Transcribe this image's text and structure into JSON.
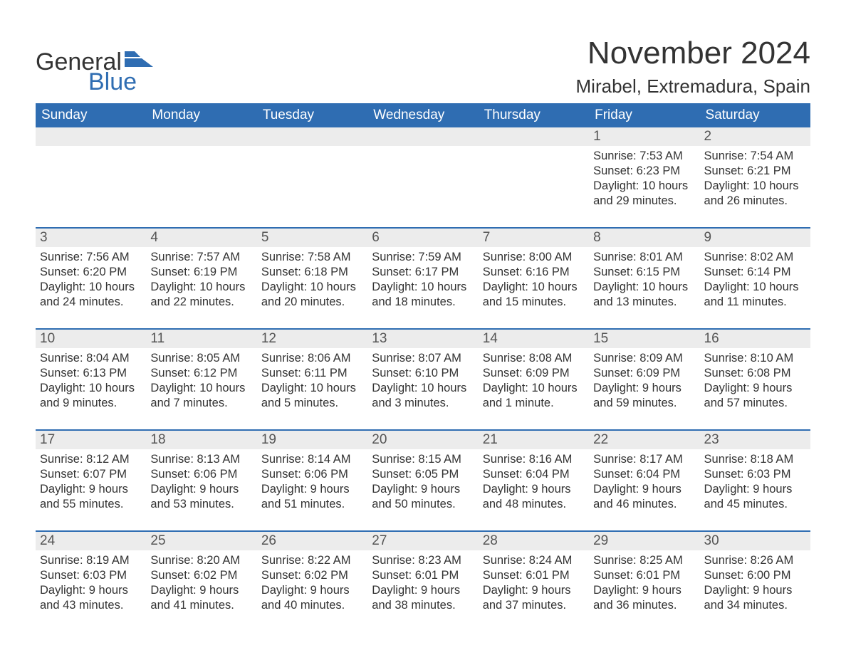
{
  "brand": {
    "part1": "General",
    "part2": "Blue",
    "flag_color": "#2f6db2"
  },
  "title": "November 2024",
  "location": "Mirabel, Extremadura, Spain",
  "colors": {
    "header_bg": "#2f6db2",
    "header_text": "#ffffff",
    "row_border": "#2f6db2",
    "daynum_bg": "#ececec",
    "text": "#333333"
  },
  "weekdays": [
    "Sunday",
    "Monday",
    "Tuesday",
    "Wednesday",
    "Thursday",
    "Friday",
    "Saturday"
  ],
  "weeks": [
    [
      {
        "n": "",
        "sr": "",
        "ss": "",
        "dl1": "",
        "dl2": ""
      },
      {
        "n": "",
        "sr": "",
        "ss": "",
        "dl1": "",
        "dl2": ""
      },
      {
        "n": "",
        "sr": "",
        "ss": "",
        "dl1": "",
        "dl2": ""
      },
      {
        "n": "",
        "sr": "",
        "ss": "",
        "dl1": "",
        "dl2": ""
      },
      {
        "n": "",
        "sr": "",
        "ss": "",
        "dl1": "",
        "dl2": ""
      },
      {
        "n": "1",
        "sr": "Sunrise: 7:53 AM",
        "ss": "Sunset: 6:23 PM",
        "dl1": "Daylight: 10 hours",
        "dl2": "and 29 minutes."
      },
      {
        "n": "2",
        "sr": "Sunrise: 7:54 AM",
        "ss": "Sunset: 6:21 PM",
        "dl1": "Daylight: 10 hours",
        "dl2": "and 26 minutes."
      }
    ],
    [
      {
        "n": "3",
        "sr": "Sunrise: 7:56 AM",
        "ss": "Sunset: 6:20 PM",
        "dl1": "Daylight: 10 hours",
        "dl2": "and 24 minutes."
      },
      {
        "n": "4",
        "sr": "Sunrise: 7:57 AM",
        "ss": "Sunset: 6:19 PM",
        "dl1": "Daylight: 10 hours",
        "dl2": "and 22 minutes."
      },
      {
        "n": "5",
        "sr": "Sunrise: 7:58 AM",
        "ss": "Sunset: 6:18 PM",
        "dl1": "Daylight: 10 hours",
        "dl2": "and 20 minutes."
      },
      {
        "n": "6",
        "sr": "Sunrise: 7:59 AM",
        "ss": "Sunset: 6:17 PM",
        "dl1": "Daylight: 10 hours",
        "dl2": "and 18 minutes."
      },
      {
        "n": "7",
        "sr": "Sunrise: 8:00 AM",
        "ss": "Sunset: 6:16 PM",
        "dl1": "Daylight: 10 hours",
        "dl2": "and 15 minutes."
      },
      {
        "n": "8",
        "sr": "Sunrise: 8:01 AM",
        "ss": "Sunset: 6:15 PM",
        "dl1": "Daylight: 10 hours",
        "dl2": "and 13 minutes."
      },
      {
        "n": "9",
        "sr": "Sunrise: 8:02 AM",
        "ss": "Sunset: 6:14 PM",
        "dl1": "Daylight: 10 hours",
        "dl2": "and 11 minutes."
      }
    ],
    [
      {
        "n": "10",
        "sr": "Sunrise: 8:04 AM",
        "ss": "Sunset: 6:13 PM",
        "dl1": "Daylight: 10 hours",
        "dl2": "and 9 minutes."
      },
      {
        "n": "11",
        "sr": "Sunrise: 8:05 AM",
        "ss": "Sunset: 6:12 PM",
        "dl1": "Daylight: 10 hours",
        "dl2": "and 7 minutes."
      },
      {
        "n": "12",
        "sr": "Sunrise: 8:06 AM",
        "ss": "Sunset: 6:11 PM",
        "dl1": "Daylight: 10 hours",
        "dl2": "and 5 minutes."
      },
      {
        "n": "13",
        "sr": "Sunrise: 8:07 AM",
        "ss": "Sunset: 6:10 PM",
        "dl1": "Daylight: 10 hours",
        "dl2": "and 3 minutes."
      },
      {
        "n": "14",
        "sr": "Sunrise: 8:08 AM",
        "ss": "Sunset: 6:09 PM",
        "dl1": "Daylight: 10 hours",
        "dl2": "and 1 minute."
      },
      {
        "n": "15",
        "sr": "Sunrise: 8:09 AM",
        "ss": "Sunset: 6:09 PM",
        "dl1": "Daylight: 9 hours",
        "dl2": "and 59 minutes."
      },
      {
        "n": "16",
        "sr": "Sunrise: 8:10 AM",
        "ss": "Sunset: 6:08 PM",
        "dl1": "Daylight: 9 hours",
        "dl2": "and 57 minutes."
      }
    ],
    [
      {
        "n": "17",
        "sr": "Sunrise: 8:12 AM",
        "ss": "Sunset: 6:07 PM",
        "dl1": "Daylight: 9 hours",
        "dl2": "and 55 minutes."
      },
      {
        "n": "18",
        "sr": "Sunrise: 8:13 AM",
        "ss": "Sunset: 6:06 PM",
        "dl1": "Daylight: 9 hours",
        "dl2": "and 53 minutes."
      },
      {
        "n": "19",
        "sr": "Sunrise: 8:14 AM",
        "ss": "Sunset: 6:06 PM",
        "dl1": "Daylight: 9 hours",
        "dl2": "and 51 minutes."
      },
      {
        "n": "20",
        "sr": "Sunrise: 8:15 AM",
        "ss": "Sunset: 6:05 PM",
        "dl1": "Daylight: 9 hours",
        "dl2": "and 50 minutes."
      },
      {
        "n": "21",
        "sr": "Sunrise: 8:16 AM",
        "ss": "Sunset: 6:04 PM",
        "dl1": "Daylight: 9 hours",
        "dl2": "and 48 minutes."
      },
      {
        "n": "22",
        "sr": "Sunrise: 8:17 AM",
        "ss": "Sunset: 6:04 PM",
        "dl1": "Daylight: 9 hours",
        "dl2": "and 46 minutes."
      },
      {
        "n": "23",
        "sr": "Sunrise: 8:18 AM",
        "ss": "Sunset: 6:03 PM",
        "dl1": "Daylight: 9 hours",
        "dl2": "and 45 minutes."
      }
    ],
    [
      {
        "n": "24",
        "sr": "Sunrise: 8:19 AM",
        "ss": "Sunset: 6:03 PM",
        "dl1": "Daylight: 9 hours",
        "dl2": "and 43 minutes."
      },
      {
        "n": "25",
        "sr": "Sunrise: 8:20 AM",
        "ss": "Sunset: 6:02 PM",
        "dl1": "Daylight: 9 hours",
        "dl2": "and 41 minutes."
      },
      {
        "n": "26",
        "sr": "Sunrise: 8:22 AM",
        "ss": "Sunset: 6:02 PM",
        "dl1": "Daylight: 9 hours",
        "dl2": "and 40 minutes."
      },
      {
        "n": "27",
        "sr": "Sunrise: 8:23 AM",
        "ss": "Sunset: 6:01 PM",
        "dl1": "Daylight: 9 hours",
        "dl2": "and 38 minutes."
      },
      {
        "n": "28",
        "sr": "Sunrise: 8:24 AM",
        "ss": "Sunset: 6:01 PM",
        "dl1": "Daylight: 9 hours",
        "dl2": "and 37 minutes."
      },
      {
        "n": "29",
        "sr": "Sunrise: 8:25 AM",
        "ss": "Sunset: 6:01 PM",
        "dl1": "Daylight: 9 hours",
        "dl2": "and 36 minutes."
      },
      {
        "n": "30",
        "sr": "Sunrise: 8:26 AM",
        "ss": "Sunset: 6:00 PM",
        "dl1": "Daylight: 9 hours",
        "dl2": "and 34 minutes."
      }
    ]
  ]
}
